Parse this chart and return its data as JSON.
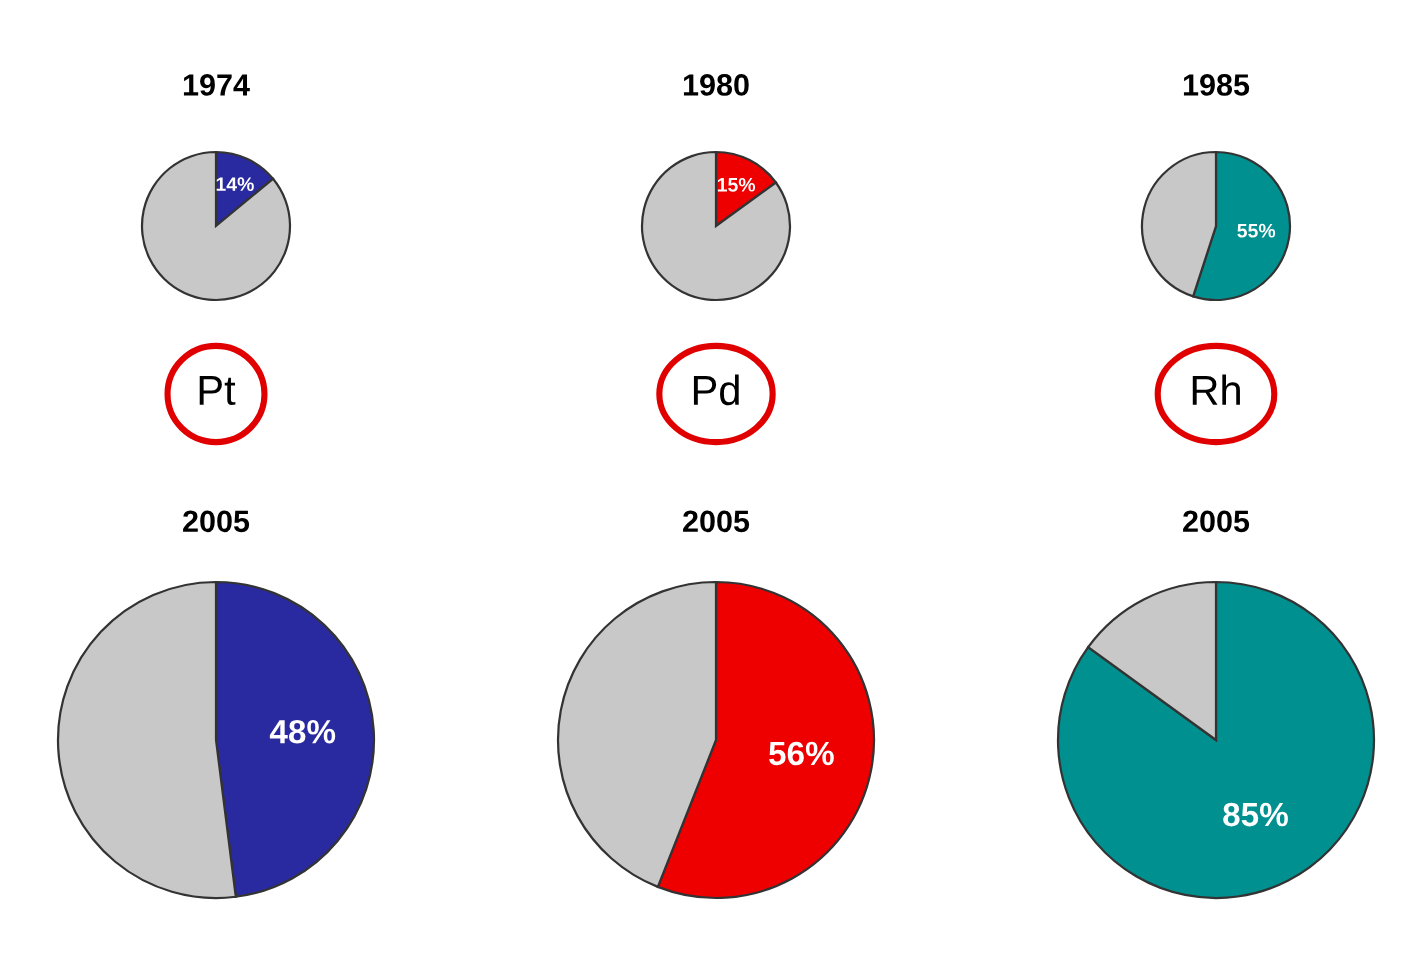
{
  "chart_data": [
    {
      "type": "pie",
      "title": "1974",
      "categories": [
        null,
        null
      ],
      "values": [
        14,
        86
      ],
      "colors": [
        "#2a2aa0",
        "#c8c8c8"
      ],
      "value_labels": [
        "14%",
        null
      ],
      "annotations": [
        "Pt"
      ]
    },
    {
      "type": "pie",
      "title": "1980",
      "categories": [
        null,
        null
      ],
      "values": [
        15,
        85
      ],
      "colors": [
        "#ee0000",
        "#c8c8c8"
      ],
      "value_labels": [
        "15%",
        null
      ],
      "annotations": [
        "Pd"
      ]
    },
    {
      "type": "pie",
      "title": "1985",
      "categories": [
        null,
        null
      ],
      "values": [
        55,
        45
      ],
      "colors": [
        "#009090",
        "#c8c8c8"
      ],
      "value_labels": [
        "55%",
        null
      ],
      "annotations": [
        "Rh"
      ]
    },
    {
      "type": "pie",
      "title": "2005",
      "categories": [
        null,
        null
      ],
      "values": [
        48,
        52
      ],
      "colors": [
        "#2a2aa0",
        "#c8c8c8"
      ],
      "value_labels": [
        "48%",
        null
      ]
    },
    {
      "type": "pie",
      "title": "2005",
      "categories": [
        null,
        null
      ],
      "values": [
        56,
        44
      ],
      "colors": [
        "#ee0000",
        "#c8c8c8"
      ],
      "value_labels": [
        "56%",
        null
      ]
    },
    {
      "type": "pie",
      "title": "2005",
      "categories": [
        null,
        null
      ],
      "values": [
        85,
        15
      ],
      "colors": [
        "#009090",
        "#c8c8c8"
      ],
      "value_labels": [
        "85%",
        null
      ]
    }
  ]
}
